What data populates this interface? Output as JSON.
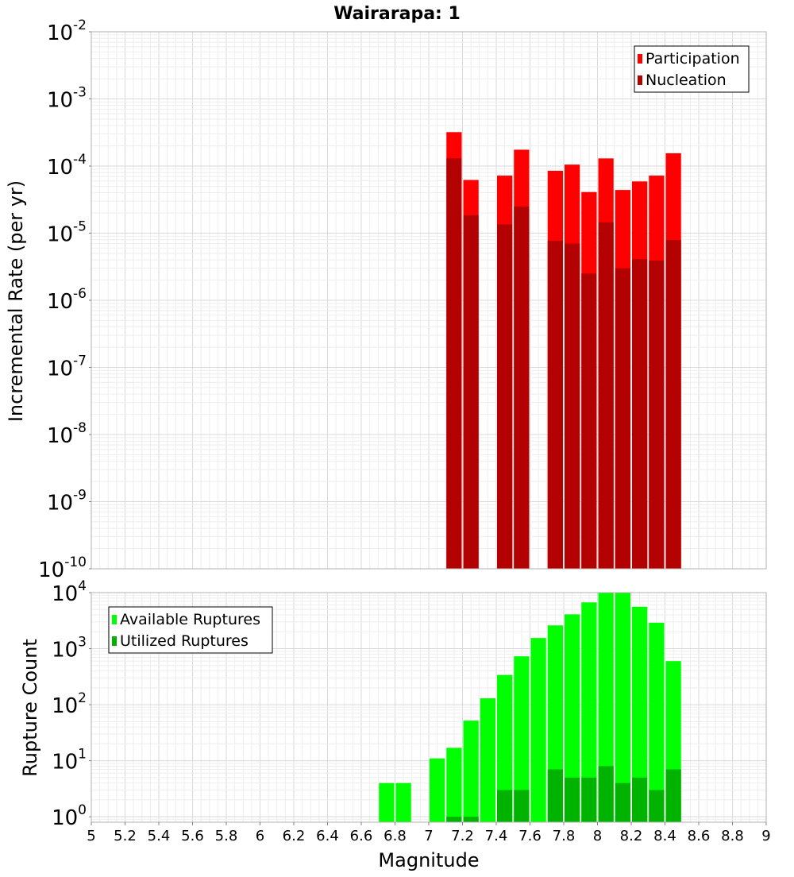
{
  "chart_data": [
    {
      "type": "bar",
      "title": "Wairarapa: 1",
      "xlabel": "",
      "ylabel": "Incremental Rate (per yr)",
      "yscale": "log",
      "ylim": [
        1e-10,
        0.01
      ],
      "xlim": [
        5,
        9
      ],
      "y_tick_exponents": [
        -10,
        -9,
        -8,
        -7,
        -6,
        -5,
        -4,
        -3,
        -2
      ],
      "grid": true,
      "legend_position": "top-right",
      "bar_width": 0.1,
      "x": [
        7.15,
        7.25,
        7.45,
        7.55,
        7.75,
        7.85,
        7.95,
        8.05,
        8.15,
        8.25,
        8.35,
        8.45
      ],
      "series": [
        {
          "name": "Participation",
          "color": "#ff0000",
          "values": [
            0.00032,
            6.2e-05,
            7.2e-05,
            0.000175,
            8.5e-05,
            0.000105,
            4.1e-05,
            0.00013,
            4.4e-05,
            5.9e-05,
            7.2e-05,
            0.000155
          ]
        },
        {
          "name": "Nucleation",
          "color": "#b30000",
          "values": [
            0.00013,
            1.85e-05,
            1.35e-05,
            2.5e-05,
            7.7e-06,
            7e-06,
            2.5e-06,
            1.45e-05,
            3e-06,
            4.1e-06,
            3.9e-06,
            7.9e-06
          ]
        }
      ]
    },
    {
      "type": "bar",
      "title": "",
      "xlabel": "Magnitude",
      "ylabel": "Rupture Count",
      "yscale": "log",
      "ylim": [
        0.8,
        10000
      ],
      "xlim": [
        5,
        9
      ],
      "y_tick_exponents": [
        0,
        1,
        2,
        3,
        4
      ],
      "x_ticks": [
        "5",
        "5.2",
        "5.4",
        "5.6",
        "5.8",
        "6",
        "6.2",
        "6.4",
        "6.6",
        "6.8",
        "7",
        "7.2",
        "7.4",
        "7.6",
        "7.8",
        "8",
        "8.2",
        "8.4",
        "8.6",
        "8.8",
        "9"
      ],
      "grid": true,
      "legend_position": "top-left",
      "bar_width": 0.1,
      "x": [
        6.75,
        6.85,
        7.05,
        7.15,
        7.25,
        7.35,
        7.45,
        7.55,
        7.65,
        7.75,
        7.85,
        7.95,
        8.05,
        8.15,
        8.25,
        8.35,
        8.45
      ],
      "series": [
        {
          "name": "Available Ruptures",
          "color": "#00ff00",
          "values": [
            4,
            4,
            11,
            17,
            52,
            130,
            340,
            730,
            1550,
            2600,
            4100,
            6700,
            10000,
            10000,
            5600,
            2900,
            600
          ]
        },
        {
          "name": "Utilized Ruptures",
          "color": "#00b300",
          "values": [
            0,
            0,
            0,
            1,
            1,
            0,
            3,
            3,
            0,
            7,
            5,
            5,
            8,
            4,
            5,
            3,
            7
          ]
        }
      ]
    }
  ]
}
